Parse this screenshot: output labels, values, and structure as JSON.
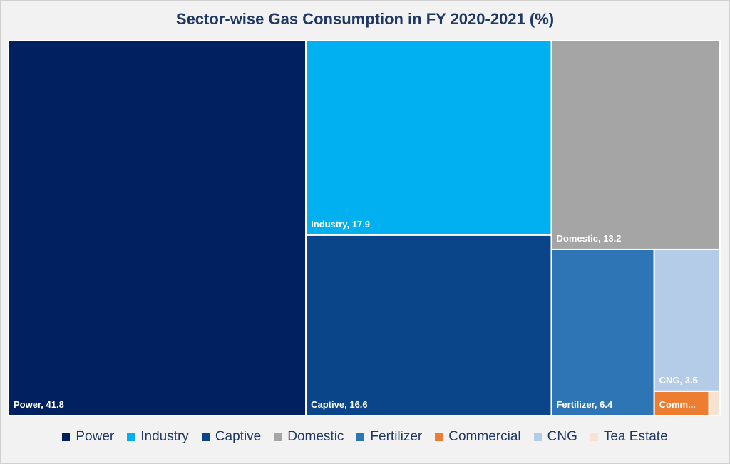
{
  "chart_data": {
    "type": "treemap",
    "title": "Sector-wise Gas Consumption in FY 2020-2021 (%)",
    "series": [
      {
        "name": "Power",
        "value": 41.8,
        "label": "Power, 41.8",
        "color": "#002060"
      },
      {
        "name": "Industry",
        "value": 17.9,
        "label": "Industry, 17.9",
        "color": "#00b0f0"
      },
      {
        "name": "Captive",
        "value": 16.6,
        "label": "Captive, 16.6",
        "color": "#0a4589"
      },
      {
        "name": "Domestic",
        "value": 13.2,
        "label": "Domestic, 13.2",
        "color": "#a5a5a5"
      },
      {
        "name": "Fertilizer",
        "value": 6.4,
        "label": "Fertilizer, 6.4",
        "color": "#2e75b6"
      },
      {
        "name": "CNG",
        "value": 3.5,
        "label": "CNG, 3.5",
        "color": "#b4cce8"
      },
      {
        "name": "Commercial",
        "value": 0.5,
        "label": "Comm...",
        "color": "#ed7d31"
      },
      {
        "name": "Tea Estate",
        "value": 0.1,
        "label": "",
        "color": "#f8e3d3"
      }
    ],
    "legend": [
      "Power",
      "Industry",
      "Captive",
      "Domestic",
      "Fertilizer",
      "Commercial",
      "CNG",
      "Tea Estate"
    ],
    "legend_position": "bottom"
  }
}
